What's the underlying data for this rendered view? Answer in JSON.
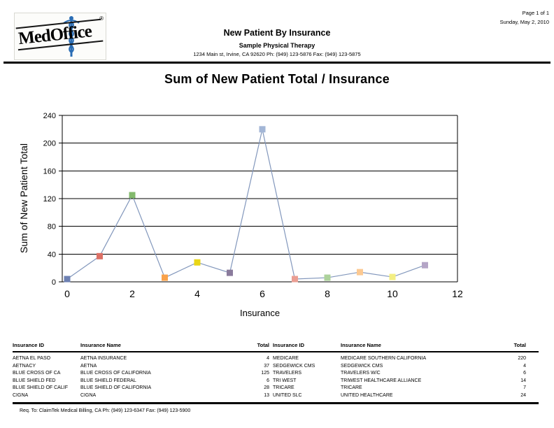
{
  "page": {
    "page_info": "Page 1 of 1",
    "date": "Sunday, May 2, 2010",
    "logo_text": "MedOffice",
    "logo_reg": "®",
    "report_title": "New Patient By Insurance",
    "practice_name": "Sample Physical Therapy",
    "practice_address": "1234 Main st, Irvine, CA 92620 Ph: (949) 123-5876 Fax: (949) 123-5875",
    "footer": "Req. To: ClaimTek Medical Billing, CA Ph: (949) 123-6347 Fax: (949) 123-5900"
  },
  "chart_data": {
    "type": "line",
    "title": "Sum of New Patient Total / Insurance",
    "xlabel": "Insurance",
    "ylabel": "Sum of New Patient Total",
    "x": [
      0,
      1,
      2,
      3,
      4,
      5,
      6,
      7,
      8,
      9,
      10,
      11
    ],
    "values": [
      4,
      37,
      125,
      6,
      28,
      13,
      220,
      4,
      6,
      14,
      7,
      24
    ],
    "point_labels": [
      "AETNA EL PASO",
      "AETNACY",
      "BLUE CROSS OF CA",
      "BLUE SHIELD FED",
      "BLUE SHIELD OF CALIF",
      "CIGNA",
      "MEDICARE",
      "SEDGEWICK CMS",
      "TRAVELERS",
      "TRI WEST",
      "TRICARE",
      "UNITED SLC"
    ],
    "xlim": [
      0,
      12
    ],
    "ylim": [
      0,
      240
    ],
    "x_ticks": [
      0,
      2,
      4,
      6,
      8,
      10,
      12
    ],
    "y_ticks": [
      0,
      40,
      80,
      120,
      160,
      200,
      240
    ],
    "grid": "horizontal",
    "legend": "none",
    "line_color": "#8297bc",
    "marker_colors": [
      "#6d80b2",
      "#dc7065",
      "#83ba6c",
      "#f9a24b",
      "#e9d616",
      "#8a7b9c",
      "#a3b6d6",
      "#ea9e93",
      "#add29b",
      "#fcc992",
      "#f3ee83",
      "#b4a5c6"
    ]
  },
  "tables": {
    "headers": [
      "Insurance ID",
      "Insurance Name",
      "Total"
    ],
    "left_rows": [
      [
        "AETNA EL PASO",
        "AETNA INSURANCE",
        "4"
      ],
      [
        "AETNACY",
        "AETNA",
        "37"
      ],
      [
        "BLUE CROSS OF CA",
        "BLUE CROSS OF CALIFORNIA",
        "125"
      ],
      [
        "BLUE SHIELD FED",
        "BLUE SHIELD FEDERAL",
        "6"
      ],
      [
        "BLUE SHIELD OF CALIF",
        "BLUE SHIELD OF CALIFORNIA",
        "28"
      ],
      [
        "CIGNA",
        "CIGNA",
        "13"
      ]
    ],
    "right_rows": [
      [
        "MEDICARE",
        "MEDICARE SOUTHERN CALIFORNIA",
        "220"
      ],
      [
        "SEDGEWICK CMS",
        "SEDGEWICK CMS",
        "4"
      ],
      [
        "TRAVELERS",
        "TRAVELERS W/C",
        "6"
      ],
      [
        "TRI WEST",
        "TRIWEST HEALTHCARE ALLIANCE",
        "14"
      ],
      [
        "TRICARE",
        "TRICARE",
        "7"
      ],
      [
        "UNITED SLC",
        "UNITED HEALTHCARE",
        "24"
      ]
    ]
  }
}
